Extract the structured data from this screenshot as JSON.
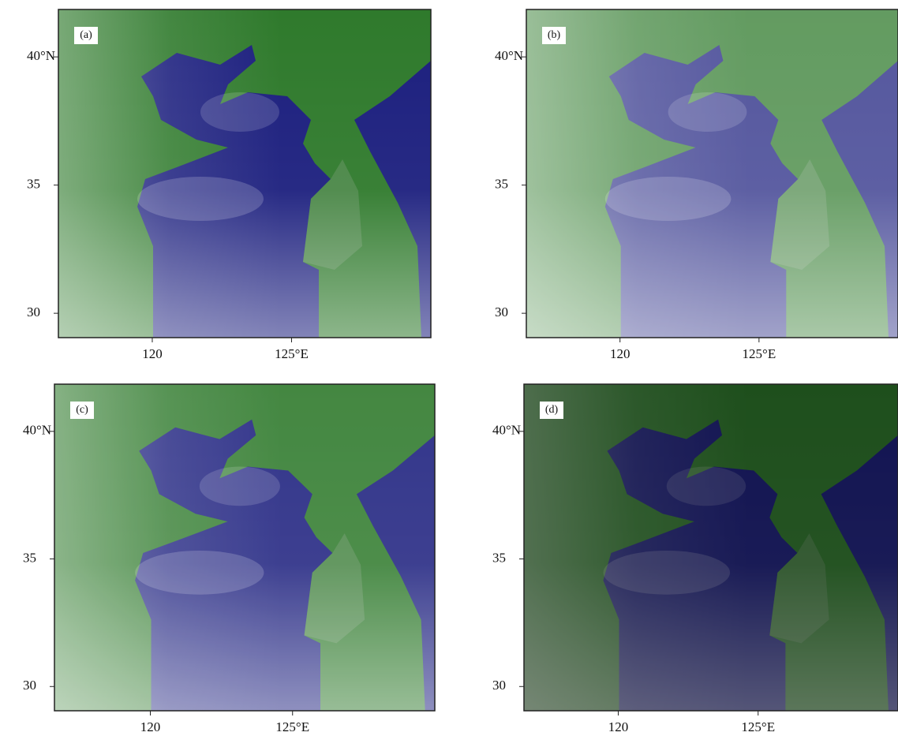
{
  "panels": [
    {
      "label": "(a)"
    },
    {
      "label": "(b)"
    },
    {
      "label": "(c)"
    },
    {
      "label": "(d)"
    }
  ],
  "axes": {
    "xlim": [
      116.63,
      130
    ],
    "ylim": [
      29.05,
      41.85
    ],
    "xticks": [
      {
        "value": 120,
        "label": "120"
      },
      {
        "value": 125,
        "label": "125°E"
      }
    ],
    "yticks": [
      {
        "value": 40,
        "label": "40°N"
      },
      {
        "value": 35,
        "label": "35"
      },
      {
        "value": 30,
        "label": "30"
      }
    ]
  }
}
